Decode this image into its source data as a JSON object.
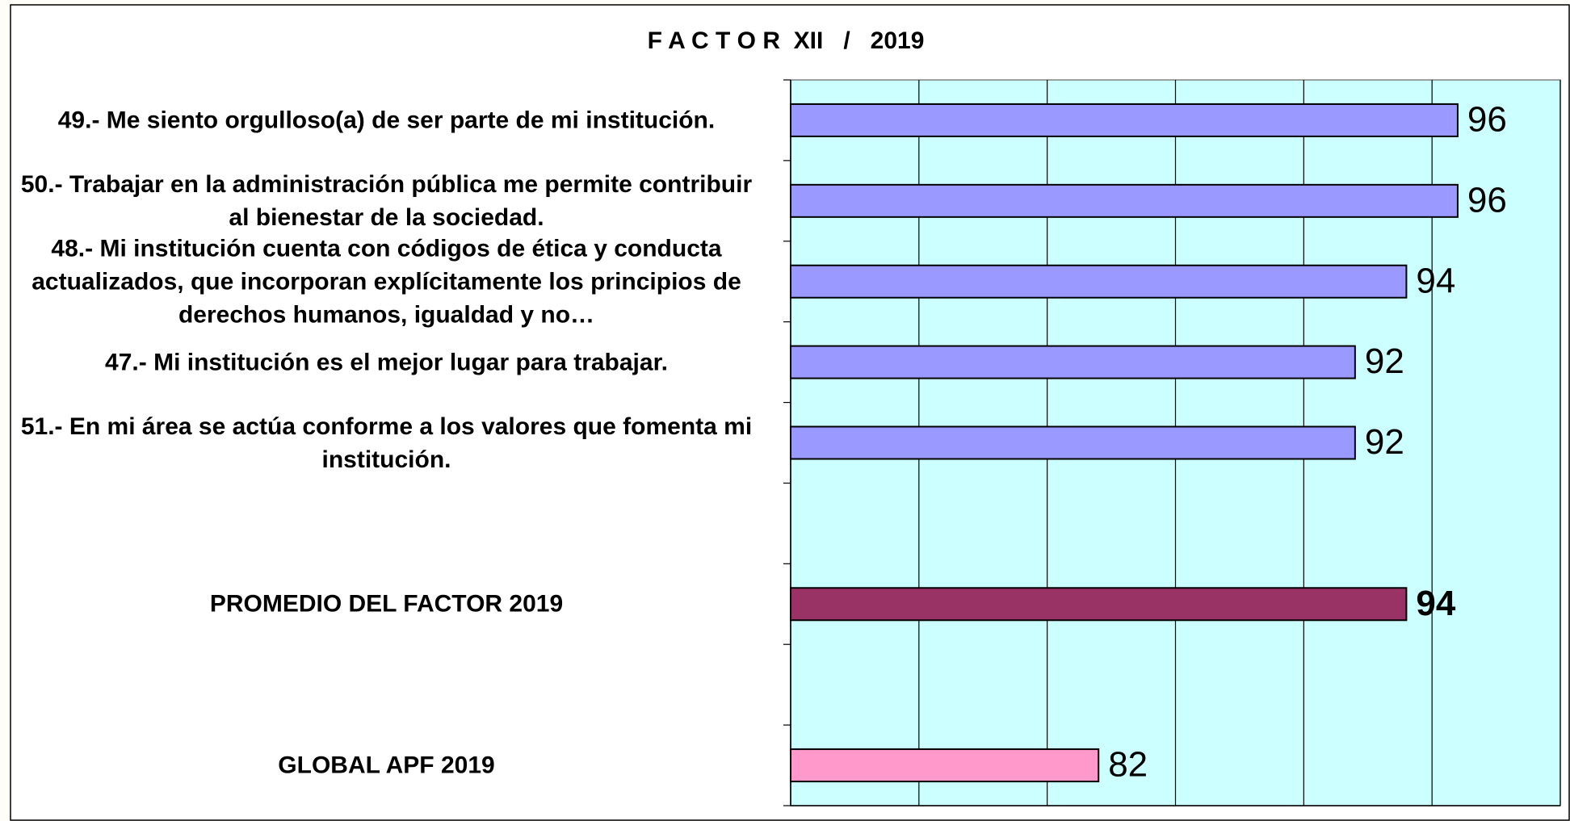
{
  "chart_data": {
    "type": "hbar",
    "title": "F A C T O R  XII   /   2019",
    "categories": [
      "49.- Me siento orgulloso(a) de ser parte de mi institución.",
      "50.- Trabajar en la administración pública me permite contribuir al bienestar de la sociedad.",
      "48.- Mi institución cuenta con códigos de ética y conducta actualizados, que incorporan explícitamente los principios de derechos humanos, igualdad y no…",
      "47.- Mi institución es el mejor lugar para trabajar.",
      "51.- En mi área se actúa conforme a los valores que fomenta mi institución.",
      null,
      "PROMEDIO DEL FACTOR   2019",
      null,
      "GLOBAL APF   2019"
    ],
    "values": [
      96,
      96,
      94,
      92,
      92,
      null,
      94,
      null,
      82
    ],
    "colors": [
      "#9999ff",
      "#9999ff",
      "#9999ff",
      "#9999ff",
      "#9999ff",
      null,
      "#993366",
      null,
      "#ff99cc"
    ],
    "bold_labels": [
      false,
      false,
      false,
      false,
      false,
      null,
      true,
      null,
      false
    ],
    "xlim": [
      70,
      100
    ],
    "xticks": [
      70,
      75,
      80,
      85,
      90,
      95,
      100
    ],
    "grid": true,
    "plot_background": "#ccffff"
  }
}
